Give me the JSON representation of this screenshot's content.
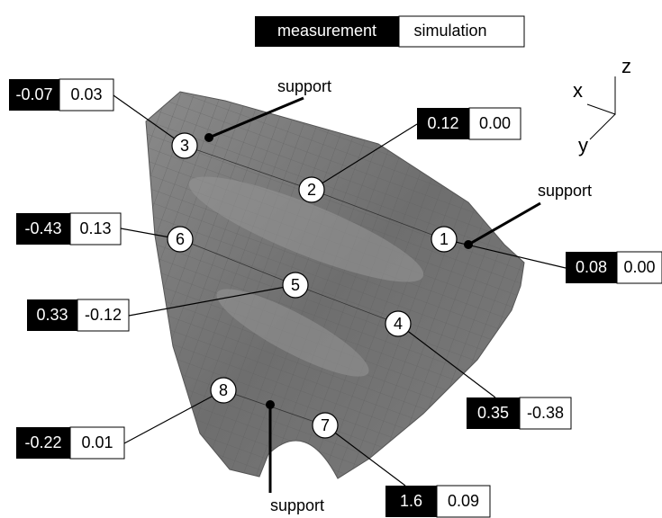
{
  "legend": {
    "measurement": "measurement",
    "simulation": "simulation"
  },
  "points": [
    {
      "label": "1",
      "measurement": "0.08",
      "simulation": "0.00"
    },
    {
      "label": "2",
      "measurement": "0.12",
      "simulation": "0.00"
    },
    {
      "label": "3",
      "measurement": "-0.07",
      "simulation": "0.03"
    },
    {
      "label": "4",
      "measurement": "0.35",
      "simulation": "-0.38"
    },
    {
      "label": "5",
      "measurement": "0.33",
      "simulation": "-0.12"
    },
    {
      "label": "6",
      "measurement": "-0.43",
      "simulation": "0.13"
    },
    {
      "label": "7",
      "measurement": "1.6",
      "simulation": "0.09"
    },
    {
      "label": "8",
      "measurement": "-0.22",
      "simulation": "0.01"
    }
  ],
  "supports": [
    "support",
    "support",
    "support"
  ],
  "axes": {
    "x": "x",
    "y": "y",
    "z": "z"
  }
}
